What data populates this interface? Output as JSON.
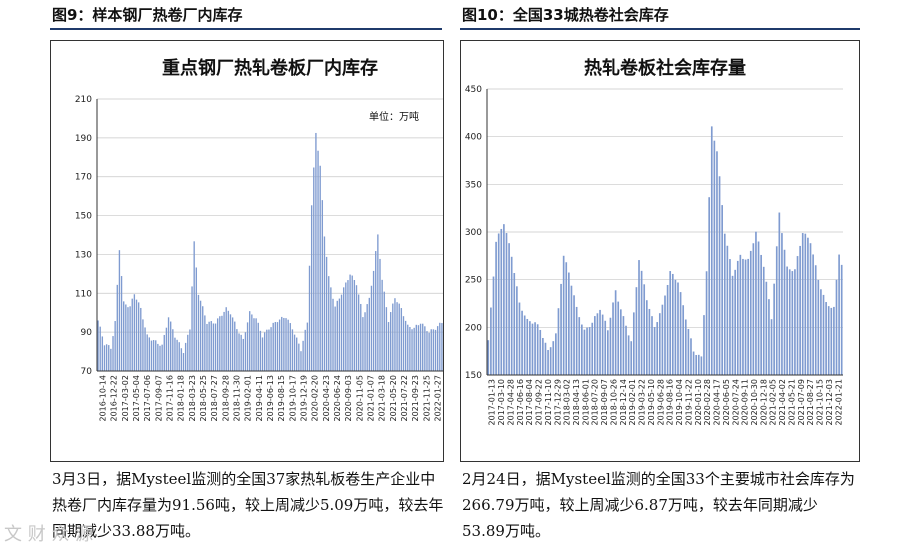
{
  "figures": [
    {
      "figure_label": "图9：样本钢厂热卷厂内库存",
      "caption": "3月3日，据Mysteel监测的全国37家热轧板卷生产企业中热卷厂内库存量为91.56吨，较上周减少5.09万吨，较去年同期减少33.88万吨。"
    },
    {
      "figure_label": "图10：全国33城热卷社会库存",
      "caption": "2月24日，据Mysteel监测的全国33个主要城市社会库存为266.79万吨，较上周减少6.87万吨，较去年同期减少53.89万吨。"
    }
  ],
  "watermark": "文 财 众 源",
  "colors": {
    "bar": "#7f9bd0",
    "rule": "#1f3a6b",
    "axis": "#333333"
  },
  "chart_data": [
    {
      "type": "bar",
      "title": "重点钢厂热轧卷板厂内库存",
      "unit_note": "单位：万吨",
      "ylim": [
        70,
        210
      ],
      "yticks": [
        70,
        90,
        110,
        130,
        150,
        170,
        190,
        210
      ],
      "grid": true,
      "xtick_labels": [
        "2016-10-14",
        "2016-12-22",
        "2017-03-02",
        "2017-05-04",
        "2017-07-06",
        "2017-09-07",
        "2017-11-16",
        "2018-01-18",
        "2018-03-23",
        "2018-05-25",
        "2018-07-27",
        "2018-09-28",
        "2018-11-30",
        "2019-02-01",
        "2019-04-11",
        "2019-06-13",
        "2019-08-15",
        "2019-10-17",
        "2019-12-19",
        "2020-02-20",
        "2020-04-23",
        "2020-06-24",
        "2020-09-03",
        "2020-11-05",
        "2021-01-07",
        "2021-03-18",
        "2021-05-20",
        "2021-07-22",
        "2021-09-23",
        "2021-11-25",
        "2022-01-27"
      ],
      "keypoints": [
        [
          0,
          96
        ],
        [
          3,
          84
        ],
        [
          6,
          82
        ],
        [
          8,
          95
        ],
        [
          10,
          133
        ],
        [
          12,
          105
        ],
        [
          15,
          103
        ],
        [
          17,
          110
        ],
        [
          20,
          102
        ],
        [
          23,
          88
        ],
        [
          27,
          85
        ],
        [
          30,
          83
        ],
        [
          33,
          98
        ],
        [
          36,
          88
        ],
        [
          40,
          80
        ],
        [
          43,
          92
        ],
        [
          45,
          136
        ],
        [
          47,
          110
        ],
        [
          51,
          95
        ],
        [
          55,
          95
        ],
        [
          60,
          102
        ],
        [
          62,
          100
        ],
        [
          65,
          92
        ],
        [
          68,
          86
        ],
        [
          71,
          100
        ],
        [
          74,
          97
        ],
        [
          77,
          88
        ],
        [
          80,
          92
        ],
        [
          84,
          96
        ],
        [
          88,
          98
        ],
        [
          91,
          92
        ],
        [
          95,
          81
        ],
        [
          98,
          95
        ],
        [
          100,
          155
        ],
        [
          102,
          193
        ],
        [
          104,
          175
        ],
        [
          106,
          140
        ],
        [
          108,
          118
        ],
        [
          111,
          103
        ],
        [
          114,
          110
        ],
        [
          118,
          120
        ],
        [
          121,
          115
        ],
        [
          124,
          98
        ],
        [
          127,
          107
        ],
        [
          129,
          122
        ],
        [
          131,
          140
        ],
        [
          133,
          117
        ],
        [
          136,
          96
        ],
        [
          139,
          108
        ],
        [
          142,
          102
        ],
        [
          145,
          93
        ],
        [
          148,
          92
        ],
        [
          151,
          95
        ],
        [
          155,
          90
        ],
        [
          158,
          92
        ],
        [
          161,
          95
        ]
      ]
    },
    {
      "type": "bar",
      "title": "热轧卷板社会库存量",
      "ylim": [
        150,
        450
      ],
      "yticks": [
        150,
        200,
        250,
        300,
        350,
        400,
        450
      ],
      "grid": true,
      "xtick_labels": [
        "2017-01-13",
        "2017-03-10",
        "2017-04-28",
        "2017-06-16",
        "2017-08-04",
        "2017-09-22",
        "2017-11-10",
        "2017-12-29",
        "2018-03-02",
        "2018-04-13",
        "2018-06-01",
        "2018-07-20",
        "2018-09-07",
        "2018-10-26",
        "2018-12-14",
        "2019-02-01",
        "2019-03-22",
        "2019-05-10",
        "2019-06-28",
        "2019-08-16",
        "2019-10-04",
        "2019-11-22",
        "2020-01-10",
        "2020-02-28",
        "2020-04-17",
        "2020-06-05",
        "2020-07-24",
        "2020-09-11",
        "2020-10-30",
        "2020-12-18",
        "2021-02-05",
        "2021-04-02",
        "2021-05-21",
        "2021-07-09",
        "2021-08-27",
        "2021-10-15",
        "2021-12-03",
        "2022-01-21"
      ],
      "keypoints": [
        [
          0,
          185
        ],
        [
          3,
          290
        ],
        [
          6,
          310
        ],
        [
          9,
          275
        ],
        [
          12,
          225
        ],
        [
          15,
          207
        ],
        [
          18,
          205
        ],
        [
          20,
          198
        ],
        [
          23,
          175
        ],
        [
          26,
          192
        ],
        [
          29,
          275
        ],
        [
          31,
          258
        ],
        [
          34,
          220
        ],
        [
          37,
          196
        ],
        [
          40,
          205
        ],
        [
          43,
          220
        ],
        [
          46,
          198
        ],
        [
          49,
          238
        ],
        [
          52,
          210
        ],
        [
          55,
          185
        ],
        [
          58,
          272
        ],
        [
          61,
          230
        ],
        [
          64,
          200
        ],
        [
          67,
          222
        ],
        [
          70,
          258
        ],
        [
          73,
          248
        ],
        [
          76,
          210
        ],
        [
          79,
          175
        ],
        [
          82,
          168
        ],
        [
          84,
          260
        ],
        [
          86,
          410
        ],
        [
          88,
          385
        ],
        [
          91,
          300
        ],
        [
          94,
          255
        ],
        [
          97,
          275
        ],
        [
          100,
          270
        ],
        [
          103,
          300
        ],
        [
          106,
          265
        ],
        [
          109,
          210
        ],
        [
          112,
          320
        ],
        [
          115,
          262
        ],
        [
          118,
          260
        ],
        [
          121,
          300
        ],
        [
          124,
          290
        ],
        [
          127,
          250
        ],
        [
          130,
          225
        ],
        [
          133,
          220
        ],
        [
          135,
          278
        ],
        [
          136,
          266
        ]
      ]
    }
  ]
}
